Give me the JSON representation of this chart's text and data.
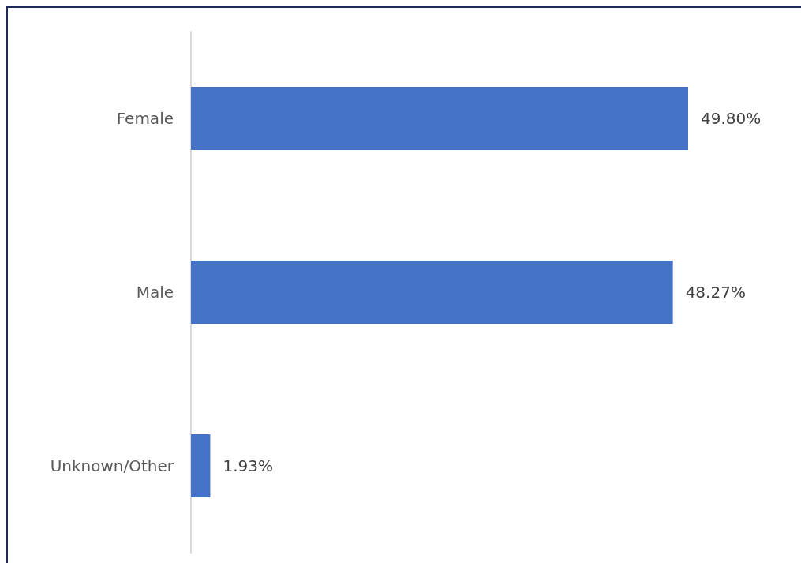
{
  "chart_data": {
    "type": "bar",
    "orientation": "horizontal",
    "categories": [
      "Female",
      "Male",
      "Unknown/Other"
    ],
    "values": [
      49.8,
      48.27,
      1.93
    ],
    "value_labels": [
      "49.80%",
      "48.27%",
      "1.93%"
    ],
    "color": "#4472c4"
  }
}
